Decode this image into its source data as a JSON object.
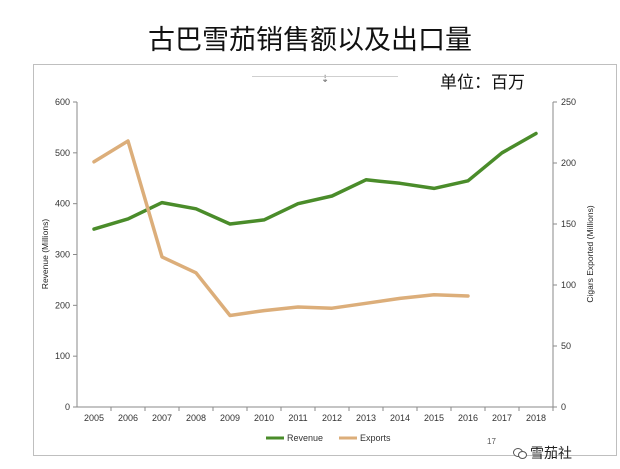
{
  "title": "古巴雪茄销售额以及出口量",
  "unit": "单位：百万",
  "watermark": "雪茄社",
  "stray_text": "17",
  "chart_data": {
    "type": "line",
    "title": "",
    "xlabel": "",
    "ylabel": "Revenue (Millions)",
    "y2label": "Cigars Exported (Millions)",
    "categories": [
      "2005",
      "2006",
      "2007",
      "2008",
      "2009",
      "2010",
      "2011",
      "2012",
      "2013",
      "2014",
      "2015",
      "2016",
      "2017",
      "2018"
    ],
    "ylim": [
      0,
      600
    ],
    "yticks": [
      0,
      100,
      200,
      300,
      400,
      500,
      600
    ],
    "y2lim": [
      0,
      250
    ],
    "y2ticks": [
      0,
      50,
      100,
      150,
      200,
      250
    ],
    "grid": false,
    "legend_position": "bottom",
    "series": [
      {
        "name": "Revenue",
        "axis": "left",
        "color": "#4a8c2a",
        "values": [
          350,
          370,
          402,
          390,
          360,
          368,
          400,
          415,
          447,
          440,
          430,
          445,
          500,
          538
        ]
      },
      {
        "name": "Exports",
        "axis": "right",
        "color": "#dcae7a",
        "values": [
          201,
          218,
          123,
          110,
          75,
          79,
          82,
          81,
          85,
          89,
          92,
          91,
          null,
          null
        ]
      }
    ]
  }
}
